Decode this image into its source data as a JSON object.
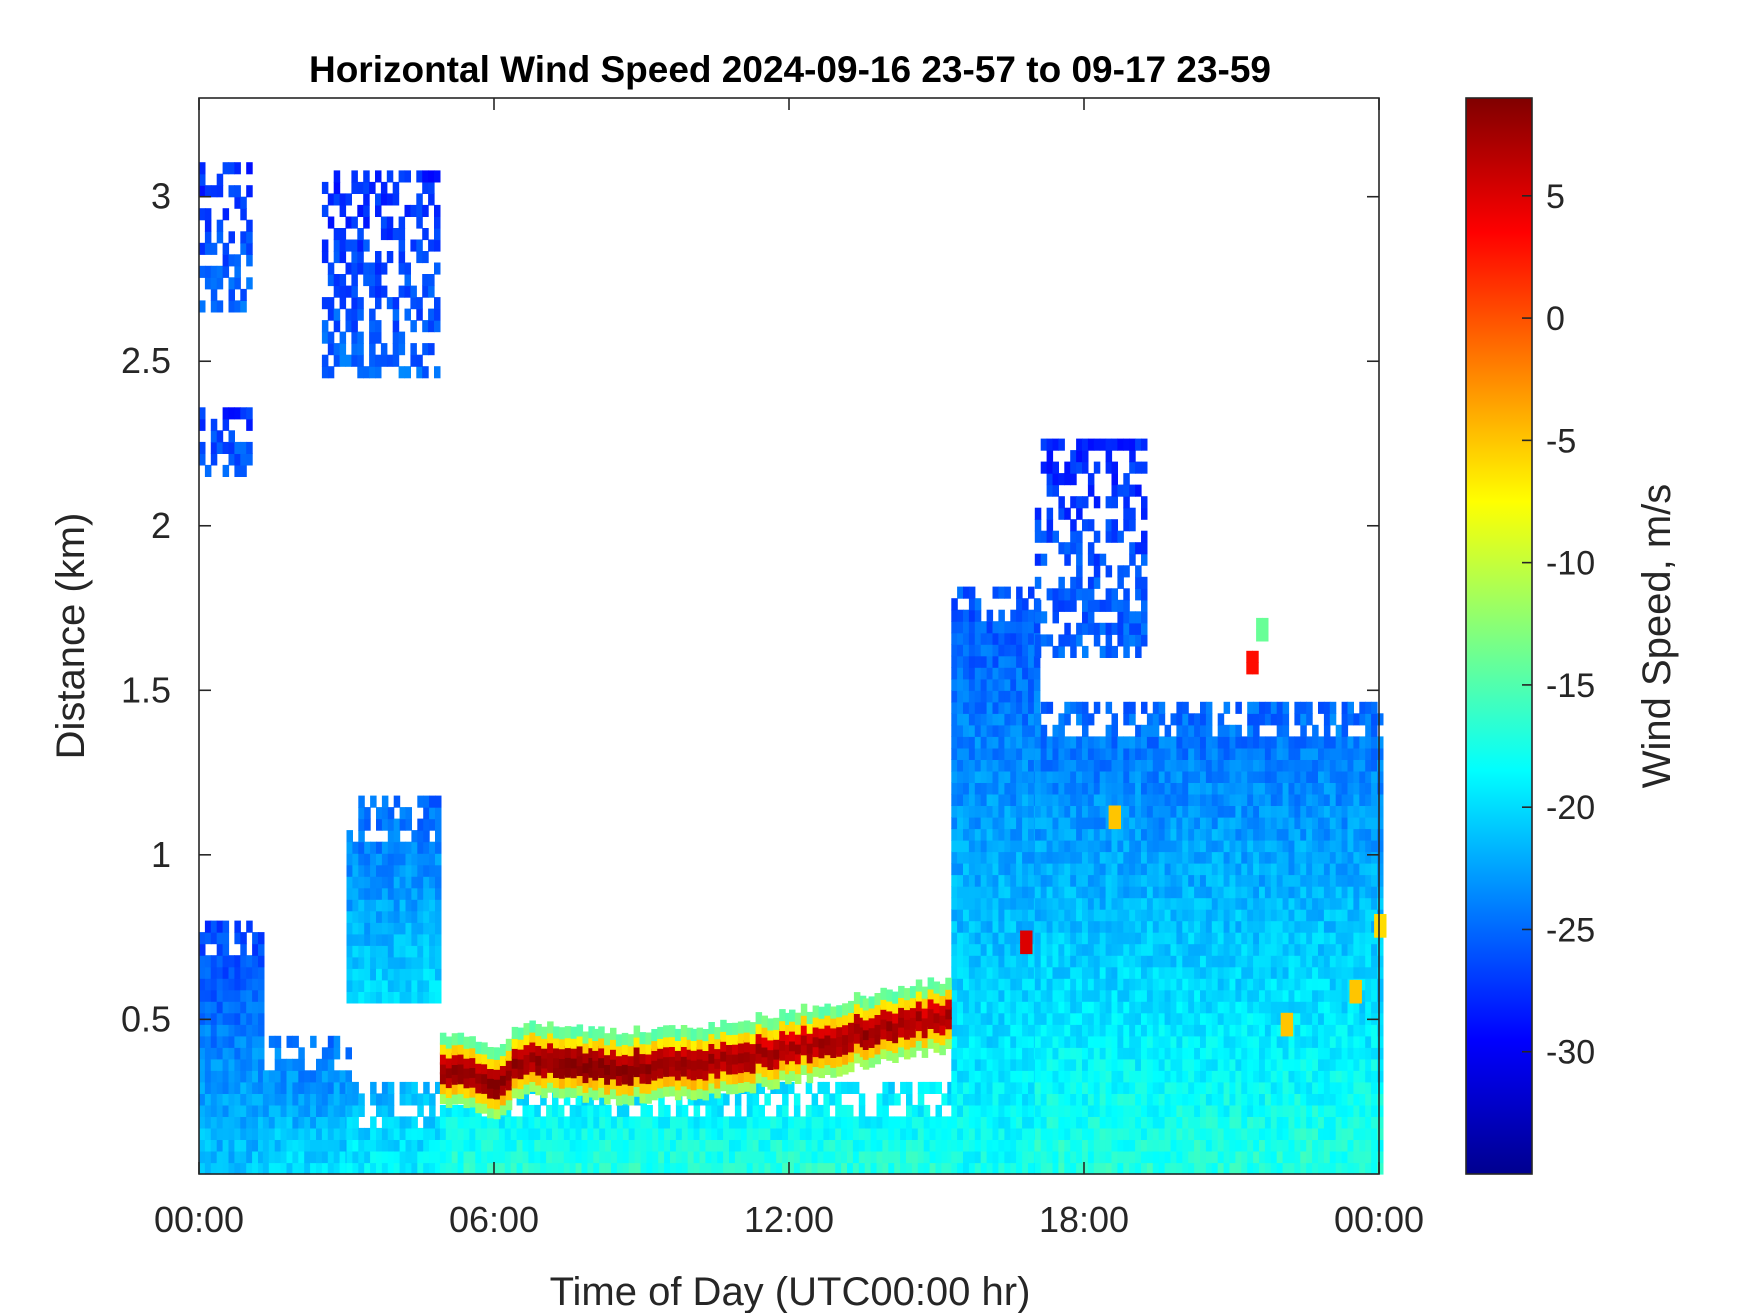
{
  "chart_data": {
    "type": "heatmap",
    "title": "Horizontal Wind Speed 2024-09-16 23-57 to 09-17 23-59",
    "xlabel": "Time of Day (UTC00:00 hr)",
    "ylabel": "Distance (km)",
    "xlim_hours": [
      0,
      24
    ],
    "ylim_km": [
      0.03,
      3.3
    ],
    "x_ticks": [
      {
        "value": 0,
        "label": "00:00"
      },
      {
        "value": 6,
        "label": "06:00"
      },
      {
        "value": 12,
        "label": "12:00"
      },
      {
        "value": 18,
        "label": "18:00"
      },
      {
        "value": 24,
        "label": "00:00"
      }
    ],
    "y_ticks": [
      {
        "value": 0.5,
        "label": "0.5"
      },
      {
        "value": 1,
        "label": "1"
      },
      {
        "value": 1.5,
        "label": "1.5"
      },
      {
        "value": 2,
        "label": "2"
      },
      {
        "value": 2.5,
        "label": "2.5"
      },
      {
        "value": 3,
        "label": "3"
      }
    ],
    "colorbar": {
      "label": "Wind Speed, m/s",
      "colormap": "jet",
      "range": [
        -35,
        9
      ],
      "ticks": [
        {
          "value": 5,
          "label": "5"
        },
        {
          "value": 0,
          "label": "0"
        },
        {
          "value": -5,
          "label": "-5"
        },
        {
          "value": -10,
          "label": "-10"
        },
        {
          "value": -15,
          "label": "-15"
        },
        {
          "value": -20,
          "label": "-20"
        },
        {
          "value": -25,
          "label": "-25"
        },
        {
          "value": -30,
          "label": "-30"
        }
      ]
    },
    "grid": false,
    "regions": [
      {
        "t0": 0.0,
        "t1": 1.3,
        "top": 0.8,
        "v_low": -21,
        "v_high": -27
      },
      {
        "t0": 1.3,
        "t1": 3.0,
        "top": 0.45,
        "v_low": -20,
        "v_high": -25
      },
      {
        "t0": 3.0,
        "t1": 4.9,
        "top": 0.28,
        "v_low": -19,
        "v_high": -22
      },
      {
        "t0": 3.0,
        "t1": 4.9,
        "bottom": 0.55,
        "top": 1.15,
        "v_low": -20,
        "v_high": -25
      },
      {
        "t0": 0.0,
        "t1": 1.0,
        "bottom": 2.65,
        "top": 3.1,
        "v_low": -25,
        "v_high": -28
      },
      {
        "t0": 0.0,
        "t1": 1.0,
        "bottom": 2.15,
        "top": 2.35,
        "v_low": -25,
        "v_high": -28
      },
      {
        "t0": 2.5,
        "t1": 4.9,
        "bottom": 2.45,
        "top": 3.05,
        "v_low": -25,
        "v_high": -28
      },
      {
        "t0": 4.9,
        "t1": 15.3,
        "top": 0.3,
        "v_low": -17,
        "v_high": -20
      },
      {
        "t0": 15.3,
        "t1": 17.0,
        "top": 1.8,
        "v_low": -18,
        "v_high": -26
      },
      {
        "t0": 17.0,
        "t1": 24.0,
        "top": 1.45,
        "v_low": -17,
        "v_high": -25
      },
      {
        "t0": 17.0,
        "t1": 19.2,
        "bottom": 1.6,
        "top": 2.25,
        "v_low": -25,
        "v_high": -28
      }
    ],
    "jet_band": [
      {
        "t": 4.9,
        "z": 0.34,
        "v": 8
      },
      {
        "t": 6.0,
        "z": 0.3,
        "v": 9
      },
      {
        "t": 6.6,
        "z": 0.37,
        "v": 8
      },
      {
        "t": 8.0,
        "z": 0.34,
        "v": 9
      },
      {
        "t": 10.0,
        "z": 0.35,
        "v": 8
      },
      {
        "t": 12.0,
        "z": 0.4,
        "v": 7
      },
      {
        "t": 13.5,
        "z": 0.45,
        "v": 8
      },
      {
        "t": 15.2,
        "z": 0.5,
        "v": 7
      }
    ],
    "isolated_features": [
      {
        "t": 16.7,
        "z": 0.7,
        "v": 5
      },
      {
        "t": 18.5,
        "z": 1.08,
        "v": -5
      },
      {
        "t": 21.3,
        "z": 1.55,
        "v": 3
      },
      {
        "t": 21.5,
        "z": 1.65,
        "v": -14
      },
      {
        "t": 22.0,
        "z": 0.45,
        "v": -5
      },
      {
        "t": 23.4,
        "z": 0.55,
        "v": -5
      },
      {
        "t": 23.9,
        "z": 0.75,
        "v": -6
      }
    ]
  }
}
